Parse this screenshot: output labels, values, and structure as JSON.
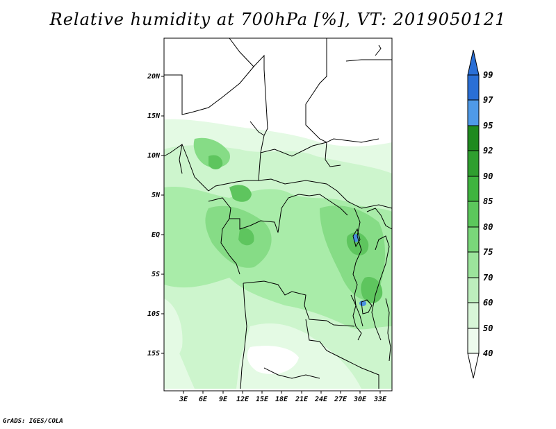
{
  "title": "Relative humidity at 700hPa [%], VT: 2019050121",
  "credit": "GrADS: IGES/COLA",
  "lat_labels": [
    "20N",
    "15N",
    "10N",
    "5N",
    "EQ",
    "5S",
    "10S",
    "15S"
  ],
  "lon_labels": [
    "3E",
    "6E",
    "9E",
    "12E",
    "15E",
    "18E",
    "21E",
    "24E",
    "27E",
    "30E",
    "33E"
  ],
  "colorbar": {
    "levels": [
      "99",
      "97",
      "95",
      "92",
      "90",
      "85",
      "80",
      "75",
      "70",
      "60",
      "50",
      "40"
    ],
    "colors": [
      "#2a6fd6",
      "#3d8be6",
      "#6fb2f2",
      "#1f8a1f",
      "#36a836",
      "#4cbc4c",
      "#66cf66",
      "#86dc86",
      "#a3e7a3",
      "#c2f0c2",
      "#dcf8dc",
      "#f2fdf2",
      "#ffffff"
    ]
  },
  "fill_colors": {
    "light": "#e4fae4",
    "light2": "#cdf5cd",
    "mid": "#a9eca9",
    "mid2": "#86dc86",
    "dark": "#5ec55e",
    "darker": "#3da83d",
    "blue": "#4a90e2"
  }
}
